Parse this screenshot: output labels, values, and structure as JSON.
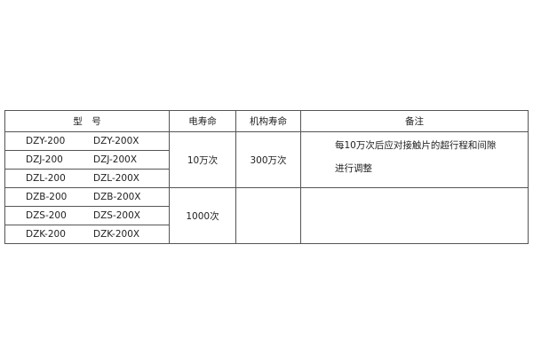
{
  "headers": [
    "型　号",
    "电寿命",
    "机构寿命",
    "备注"
  ],
  "rows": [
    {
      "model": "DZY-200",
      "model_x": "DZY-200X"
    },
    {
      "model": "DZJ-200",
      "model_x": "DZJ-200X"
    },
    {
      "model": "DZL-200",
      "model_x": "DZL-200X"
    },
    {
      "model": "DZB-200",
      "model_x": "DZB-200X"
    },
    {
      "model": "DZS-200",
      "model_x": "DZS-200X"
    },
    {
      "model": "DZK-200",
      "model_x": "DZK-200X"
    }
  ],
  "group1": {
    "electrical_life": "10万次",
    "mechanical_life": "300万次",
    "note_line1": "每10万次后应对接触片的超行程和间隙",
    "note_line2": "进行调整"
  },
  "group2": {
    "electrical_life": "1000次",
    "mechanical_life": "",
    "note": ""
  }
}
